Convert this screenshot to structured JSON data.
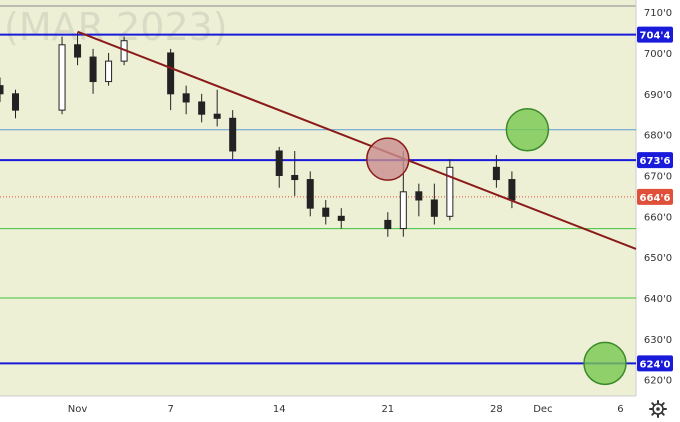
{
  "chart_data": {
    "type": "candlestick",
    "watermark": "(MAR 2023)",
    "y_axis": {
      "ticks": [
        710.0,
        700.0,
        690.0,
        680.0,
        670.0,
        660.0,
        650.0,
        640.0,
        630.0,
        620.0
      ],
      "tick_labels": [
        "710'0",
        "700'0",
        "690'0",
        "680'0",
        "670'0",
        "660'0",
        "650'0",
        "640'0",
        "630'0",
        "620'0"
      ],
      "range": [
        616.0,
        711.5
      ]
    },
    "x_axis": {
      "tick_labels": [
        "Nov",
        "7",
        "14",
        "21",
        "28",
        "Dec",
        "6"
      ],
      "tick_dates": [
        "2022-11-01",
        "2022-11-07",
        "2022-11-14",
        "2022-11-21",
        "2022-11-28",
        "2022-12-01",
        "2022-12-06"
      ],
      "range": [
        "2022-10-27",
        "2022-12-07"
      ]
    },
    "levels": [
      {
        "value": 704.5,
        "label": "704'4",
        "color": "#1a1adb",
        "style": "thick"
      },
      {
        "value": 673.75,
        "label": "673'6",
        "color": "#1a1adb",
        "style": "thick"
      },
      {
        "value": 624.0,
        "label": "624'0",
        "color": "#1a1adb",
        "style": "thick"
      },
      {
        "value": 681.2,
        "color": "#5b9bd5",
        "style": "thin"
      },
      {
        "value": 657.0,
        "color": "#3cc33c",
        "style": "thin"
      },
      {
        "value": 640.0,
        "color": "#3cc33c",
        "style": "thin"
      }
    ],
    "last_price": {
      "value": 664.75,
      "label": "664'6",
      "color": "#e04f3a"
    },
    "trendline": {
      "color": "#8b1a1a",
      "from": {
        "date": "2022-11-01",
        "value": 705.2
      },
      "to": {
        "date": "2022-12-07",
        "value": 652.0
      }
    },
    "markers": [
      {
        "date": "2022-11-21",
        "value": 674.0,
        "color": "#c98f8f",
        "border": "#8b1a1a"
      },
      {
        "date": "2022-11-30",
        "value": 681.2,
        "color": "#78c850",
        "border": "#3a8a2a"
      },
      {
        "date": "2022-12-05",
        "value": 624.0,
        "color": "#78c850",
        "border": "#3a8a2a"
      }
    ],
    "candles": [
      {
        "date": "2022-10-27",
        "open": 692,
        "high": 694,
        "low": 688,
        "close": 690
      },
      {
        "date": "2022-10-28",
        "open": 690,
        "high": 691,
        "low": 684,
        "close": 686
      },
      {
        "date": "2022-10-31",
        "open": 686,
        "high": 704,
        "low": 685,
        "close": 702
      },
      {
        "date": "2022-11-01",
        "open": 702,
        "high": 705,
        "low": 697,
        "close": 699
      },
      {
        "date": "2022-11-02",
        "open": 699,
        "high": 701,
        "low": 690,
        "close": 693
      },
      {
        "date": "2022-11-03",
        "open": 693,
        "high": 700,
        "low": 692,
        "close": 698
      },
      {
        "date": "2022-11-04",
        "open": 698,
        "high": 704,
        "low": 697,
        "close": 703
      },
      {
        "date": "2022-11-07",
        "open": 700,
        "high": 701,
        "low": 686,
        "close": 690
      },
      {
        "date": "2022-11-08",
        "open": 690,
        "high": 692,
        "low": 685,
        "close": 688
      },
      {
        "date": "2022-11-09",
        "open": 688,
        "high": 690,
        "low": 683,
        "close": 685
      },
      {
        "date": "2022-11-10",
        "open": 685,
        "high": 691,
        "low": 682,
        "close": 684
      },
      {
        "date": "2022-11-11",
        "open": 684,
        "high": 686,
        "low": 674,
        "close": 676
      },
      {
        "date": "2022-11-14",
        "open": 676,
        "high": 677,
        "low": 667,
        "close": 670
      },
      {
        "date": "2022-11-15",
        "open": 670,
        "high": 676,
        "low": 665,
        "close": 669
      },
      {
        "date": "2022-11-16",
        "open": 669,
        "high": 671,
        "low": 660,
        "close": 662
      },
      {
        "date": "2022-11-17",
        "open": 662,
        "high": 664,
        "low": 658,
        "close": 660
      },
      {
        "date": "2022-11-18",
        "open": 660,
        "high": 662,
        "low": 657,
        "close": 659
      },
      {
        "date": "2022-11-21",
        "open": 659,
        "high": 661,
        "low": 655,
        "close": 657
      },
      {
        "date": "2022-11-22",
        "open": 657,
        "high": 676,
        "low": 655,
        "close": 666
      },
      {
        "date": "2022-11-23",
        "open": 666,
        "high": 668,
        "low": 660,
        "close": 664
      },
      {
        "date": "2022-11-24",
        "open": 664,
        "high": 668,
        "low": 658,
        "close": 660
      },
      {
        "date": "2022-11-25",
        "open": 660,
        "high": 674,
        "low": 659,
        "close": 672
      },
      {
        "date": "2022-11-28",
        "open": 672,
        "high": 675,
        "low": 667,
        "close": 669
      },
      {
        "date": "2022-11-29",
        "open": 669,
        "high": 671,
        "low": 662,
        "close": 664
      }
    ]
  },
  "settings_icon": "gear-icon"
}
